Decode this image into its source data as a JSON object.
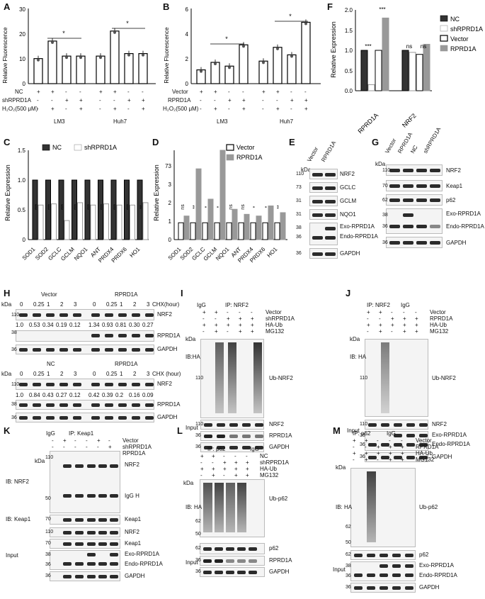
{
  "panels": [
    "A",
    "B",
    "C",
    "D",
    "E",
    "F",
    "G",
    "H",
    "I",
    "J",
    "K",
    "L",
    "M"
  ],
  "chart_data": [
    {
      "id": "A",
      "type": "bar",
      "ylabel": "Relative Fluorescence",
      "ylim": [
        0,
        30
      ],
      "yticks": [
        0,
        10,
        20,
        30
      ],
      "values": [
        10,
        17,
        11,
        11,
        11,
        21,
        12,
        12
      ],
      "colors": [
        "#ffffff",
        "#ffffff",
        "#ffffff",
        "#ffffff",
        "#ffffff",
        "#ffffff",
        "#ffffff",
        "#ffffff"
      ],
      "significance": [
        {
          "from": 1,
          "to": 3,
          "label": "*"
        },
        {
          "from": 5,
          "to": 7,
          "label": "*"
        }
      ],
      "rows": [
        {
          "label": "NC",
          "marks": [
            "+",
            "+",
            "-",
            "-",
            "+",
            "+",
            "-",
            "-"
          ]
        },
        {
          "label": "shRPRD1A",
          "marks": [
            "-",
            "-",
            "+",
            "+",
            "-",
            "-",
            "+",
            "+"
          ]
        },
        {
          "label": "H₂O₂(500 μM)",
          "marks": [
            "-",
            "+",
            "-",
            "+",
            "-",
            "+",
            "-",
            "+"
          ]
        }
      ],
      "groups": [
        "LM3",
        "Huh7"
      ]
    },
    {
      "id": "B",
      "type": "bar",
      "ylabel": "Relative Fluorescence",
      "ylim": [
        0,
        6
      ],
      "yticks": [
        0,
        2,
        4,
        6
      ],
      "values": [
        1.1,
        1.7,
        1.4,
        3.1,
        1.8,
        2.9,
        2.3,
        4.9
      ],
      "colors": [
        "#ffffff",
        "#ffffff",
        "#ffffff",
        "#ffffff",
        "#ffffff",
        "#ffffff",
        "#ffffff",
        "#ffffff"
      ],
      "significance": [
        {
          "from": 1,
          "to": 3,
          "label": "*"
        },
        {
          "from": 5,
          "to": 7,
          "label": "*"
        }
      ],
      "rows": [
        {
          "label": "Vector",
          "marks": [
            "+",
            "+",
            "-",
            "-",
            "+",
            "+",
            "-",
            "-"
          ]
        },
        {
          "label": "RPRD1A",
          "marks": [
            "-",
            "-",
            "+",
            "+",
            "-",
            "-",
            "+",
            "+"
          ]
        },
        {
          "label": "H₂O₂(500 μM)",
          "marks": [
            "-",
            "+",
            "-",
            "+",
            "-",
            "+",
            "-",
            "+"
          ]
        }
      ],
      "groups": [
        "LM3",
        "Huh7"
      ]
    },
    {
      "id": "C",
      "type": "bar",
      "ylabel": "Relative Expression",
      "ylim": [
        0,
        1.5
      ],
      "yticks": [
        0,
        0.5,
        1.0,
        1.5
      ],
      "categories": [
        "SOD1",
        "SOD2",
        "GCLC",
        "GCLM",
        "NQO1",
        "ANT",
        "PRDX4",
        "PRDX6",
        "HO1"
      ],
      "series": [
        {
          "name": "NC",
          "color": "#333333",
          "values": [
            1,
            1,
            1,
            1,
            1,
            1,
            1,
            1,
            1
          ]
        },
        {
          "name": "shRPRD1A",
          "color": "#ffffff",
          "values": [
            0.58,
            0.6,
            0.32,
            0.62,
            0.58,
            0.6,
            0.58,
            0.58,
            0.62
          ]
        }
      ],
      "significance": [
        "***",
        "***",
        "***",
        "***",
        "***",
        "***",
        "***",
        "***",
        "**"
      ]
    },
    {
      "id": "D",
      "type": "bar",
      "ylabel": "Relative Expression",
      "ylim": [
        0,
        8
      ],
      "yticks": [
        0,
        0.2,
        0.4,
        0.6
      ],
      "ytick_labels": [
        "0",
        "1",
        "2",
        "3"
      ],
      "categories": [
        "SOD1",
        "SOD2",
        "GCLC",
        "GCLM",
        "NQO1",
        "ANT",
        "PRDX4",
        "PRDX6",
        "HO1"
      ],
      "series": [
        {
          "name": "Vector",
          "color": "#ffffff",
          "values": [
            1,
            1,
            1,
            1,
            1,
            1,
            1,
            1,
            1
          ]
        },
        {
          "name": "RPRD1A",
          "color": "#999999",
          "values": [
            1.4,
            4.2,
            2.4,
            5.3,
            1.8,
            1.5,
            1.4,
            2.0,
            1.6
          ]
        }
      ],
      "significance": [
        "ns",
        "**",
        "*",
        "*",
        "ns",
        "ns",
        "*",
        "*",
        "**"
      ],
      "ytick_labels_shown": [
        "0",
        "1",
        "2",
        "3",
        "73"
      ]
    },
    {
      "id": "F",
      "type": "bar",
      "ylabel": "Relative Expression",
      "ylim": [
        0,
        2.0
      ],
      "yticks": [
        0,
        0.5,
        1.0,
        1.5,
        2.0
      ],
      "categories": [
        "RPRD1A",
        "NRF2"
      ],
      "series": [
        {
          "name": "NC",
          "color": "#333333",
          "values": [
            1.0,
            1.0
          ]
        },
        {
          "name": "shRPRD1A",
          "color": "#ffffff",
          "values": [
            0.15,
            0.95
          ]
        },
        {
          "name": "Vector",
          "color": "#ffffff",
          "values": [
            1.0,
            0.9
          ]
        },
        {
          "name": "RPRD1A",
          "color": "#999999",
          "values": [
            1.8,
            1.15
          ]
        }
      ],
      "significance": [
        {
          "label": "***"
        },
        {
          "label": "***"
        },
        {
          "label": "ns"
        },
        {
          "label": "ns"
        }
      ]
    }
  ],
  "ticks": {
    "zero": "0",
    "one": "1",
    "two": "2",
    "three": "3",
    "four": "4",
    "six": "6",
    "ten": "10",
    "twenty": "20",
    "thirty": "30",
    "c0": "0",
    "c05": "0.5",
    "c10": "1.0",
    "c15": "1.5",
    "f0": "0.0",
    "f05": "0.5",
    "f10": "1.0",
    "f15": "1.5",
    "f20": "2.0",
    "d0": "0",
    "d1": "1",
    "d2": "2",
    "d3": "3",
    "d73": "73"
  },
  "text": {
    "plus": "+",
    "minus": "-",
    "lm3": "LM3",
    "huh7": "Huh7",
    "nc": "NC",
    "sh": "shRPRD1A",
    "vector": "Vector",
    "rprd1a": "RPRD1A",
    "h2o2": "H₂O₂(500 μM)",
    "kda": "kDa",
    "nrf2": "NRF2",
    "gclc": "GCLC",
    "gclm": "GCLM",
    "nqo1": "NQO1",
    "exo": "Exo-RPRD1A",
    "endo": "Endo-RPRD1A",
    "gapdh": "GAPDH",
    "keap1": "Keap1",
    "p62": "p62",
    "chx": "CHX(hour)",
    "chx2": "CHX (hour)",
    "h_times": [
      "0",
      "0.25",
      "1",
      "2",
      "3",
      "0",
      "0.25",
      "1",
      "2",
      "3"
    ],
    "h_q1": [
      "1.0",
      "0.53",
      "0.34",
      "0.19",
      "0.12",
      "1.34",
      "0.93",
      "0.81",
      "0.30",
      "0.27"
    ],
    "h_q2": [
      "1.0",
      "0.84",
      "0.43",
      "0.27",
      "0.12",
      "0.42",
      "0.39",
      "0.2",
      "0.16",
      "0.09"
    ],
    "igg": "IgG",
    "ip_nrf2": "IP: NRF2",
    "ip_keap1": "IP: Keap1",
    "ip_p62": "IP: p62",
    "ha_ub": "HA-Ub",
    "mg132": "MG132",
    "ibha": "IB:HA",
    "ib_ha": "IB: HA",
    "ib_nrf2": "IB: NRF2",
    "ib_keap1": "IB: Keap1",
    "input": "Input",
    "ub_nrf2": "Ub-NRF2",
    "ub_p62": "Ub-p62",
    "iggh": "IgG H",
    "m110": "110",
    "m73": "73",
    "m70": "70",
    "m62": "62",
    "m50": "50",
    "m38": "38",
    "m36": "36",
    "m31": "31"
  }
}
